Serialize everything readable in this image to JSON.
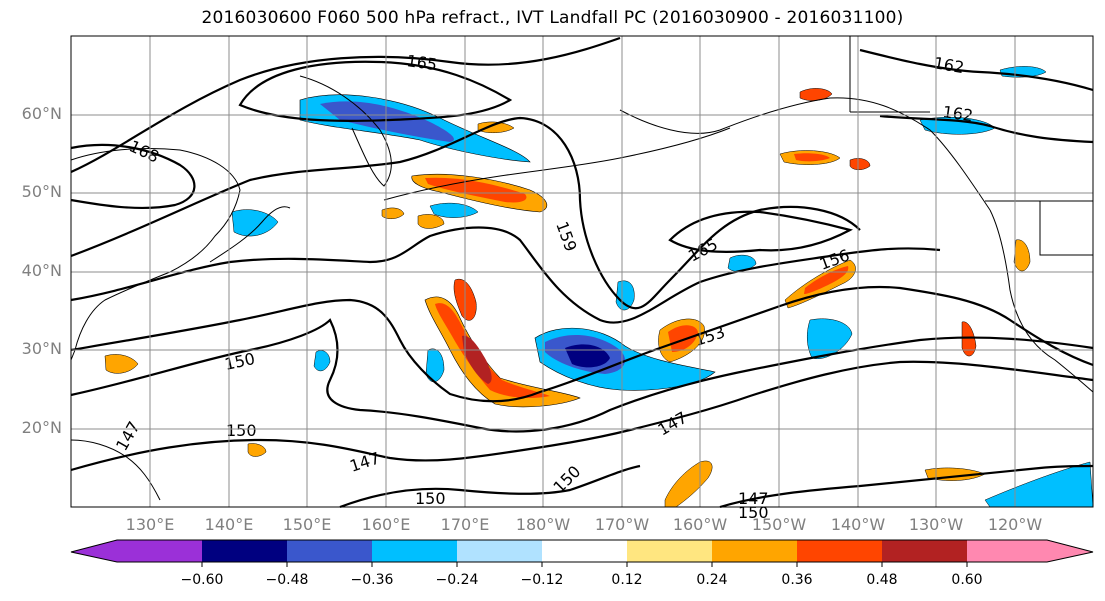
{
  "title": "2016030600 F060 500 hPa refract., IVT Landfall PC (2016030900 - 2016031100)",
  "map": {
    "lat_labels": [
      "60°N",
      "50°N",
      "40°N",
      "30°N",
      "20°N"
    ],
    "lon_labels": [
      "130°E",
      "140°E",
      "150°E",
      "160°E",
      "170°E",
      "180°W",
      "170°W",
      "160°W",
      "150°W",
      "140°W",
      "130°W",
      "120°W"
    ],
    "contour_labels": [
      "165",
      "162",
      "162",
      "168",
      "159",
      "165",
      "156",
      "153",
      "150",
      "150",
      "147",
      "147",
      "147",
      "150",
      "150",
      "147",
      "150"
    ]
  },
  "colorbar": {
    "tick_labels": [
      "−0.60",
      "−0.48",
      "−0.36",
      "−0.24",
      "−0.12",
      "0.12",
      "0.24",
      "0.36",
      "0.48",
      "0.60"
    ],
    "colors": [
      "#9b30d8",
      "#000080",
      "#3a57cc",
      "#00bfff",
      "#b0e2ff",
      "#ffffff",
      "#ffe680",
      "#ffa500",
      "#ff4500",
      "#b22222",
      "#ff88b0"
    ]
  }
}
